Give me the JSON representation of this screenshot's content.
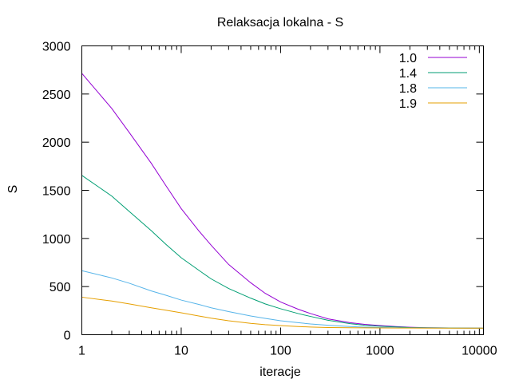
{
  "chart_data": {
    "type": "line",
    "title": "Relaksacja lokalna - S",
    "xlabel": "iteracje",
    "ylabel": "S",
    "xscale": "log",
    "xlim": [
      1,
      11000
    ],
    "ylim": [
      0,
      3000
    ],
    "x_ticks": [
      1,
      10,
      100,
      1000,
      10000
    ],
    "x_tick_labels": [
      "1",
      "10",
      "100",
      "1000",
      "10000"
    ],
    "y_ticks": [
      0,
      500,
      1000,
      1500,
      2000,
      2500,
      3000
    ],
    "y_tick_labels": [
      "0",
      "500",
      "1000",
      "1500",
      "2000",
      "2500",
      "3000"
    ],
    "grid": false,
    "legend_position": "top-right",
    "series": [
      {
        "name": "1.0",
        "color": "#9400d3",
        "points": [
          [
            1,
            2715
          ],
          [
            2,
            2350
          ],
          [
            3,
            2100
          ],
          [
            5,
            1780
          ],
          [
            7,
            1550
          ],
          [
            10,
            1310
          ],
          [
            15,
            1080
          ],
          [
            20,
            930
          ],
          [
            30,
            730
          ],
          [
            50,
            540
          ],
          [
            70,
            430
          ],
          [
            100,
            340
          ],
          [
            150,
            265
          ],
          [
            200,
            220
          ],
          [
            300,
            165
          ],
          [
            500,
            125
          ],
          [
            700,
            108
          ],
          [
            1000,
            95
          ],
          [
            1500,
            84
          ],
          [
            2000,
            78
          ],
          [
            3000,
            73
          ],
          [
            5000,
            70
          ],
          [
            10000,
            68
          ],
          [
            11000,
            68
          ]
        ]
      },
      {
        "name": "1.4",
        "color": "#009e73",
        "points": [
          [
            1,
            1655
          ],
          [
            2,
            1440
          ],
          [
            3,
            1280
          ],
          [
            5,
            1080
          ],
          [
            7,
            940
          ],
          [
            10,
            800
          ],
          [
            15,
            670
          ],
          [
            20,
            580
          ],
          [
            30,
            480
          ],
          [
            50,
            380
          ],
          [
            70,
            320
          ],
          [
            100,
            270
          ],
          [
            150,
            220
          ],
          [
            200,
            190
          ],
          [
            300,
            150
          ],
          [
            500,
            115
          ],
          [
            700,
            98
          ],
          [
            1000,
            88
          ],
          [
            1500,
            80
          ],
          [
            2000,
            75
          ],
          [
            3000,
            72
          ],
          [
            5000,
            70
          ],
          [
            10000,
            68
          ],
          [
            11000,
            68
          ]
        ]
      },
      {
        "name": "1.8",
        "color": "#56b4e9",
        "points": [
          [
            1,
            665
          ],
          [
            2,
            590
          ],
          [
            3,
            535
          ],
          [
            5,
            455
          ],
          [
            7,
            410
          ],
          [
            10,
            360
          ],
          [
            15,
            315
          ],
          [
            20,
            280
          ],
          [
            30,
            240
          ],
          [
            50,
            195
          ],
          [
            70,
            170
          ],
          [
            100,
            145
          ],
          [
            150,
            125
          ],
          [
            200,
            112
          ],
          [
            300,
            98
          ],
          [
            500,
            85
          ],
          [
            700,
            79
          ],
          [
            1000,
            75
          ],
          [
            1500,
            72
          ],
          [
            2000,
            70
          ],
          [
            5000,
            68
          ],
          [
            10000,
            68
          ],
          [
            11000,
            68
          ]
        ]
      },
      {
        "name": "1.9",
        "color": "#e69f00",
        "points": [
          [
            1,
            390
          ],
          [
            2,
            350
          ],
          [
            3,
            320
          ],
          [
            5,
            280
          ],
          [
            7,
            255
          ],
          [
            10,
            228
          ],
          [
            15,
            195
          ],
          [
            20,
            172
          ],
          [
            30,
            145
          ],
          [
            50,
            118
          ],
          [
            70,
            105
          ],
          [
            100,
            95
          ],
          [
            150,
            85
          ],
          [
            200,
            80
          ],
          [
            300,
            75
          ],
          [
            500,
            72
          ],
          [
            1000,
            70
          ],
          [
            2000,
            69
          ],
          [
            5000,
            68
          ],
          [
            10000,
            68
          ],
          [
            11000,
            68
          ]
        ]
      }
    ]
  }
}
